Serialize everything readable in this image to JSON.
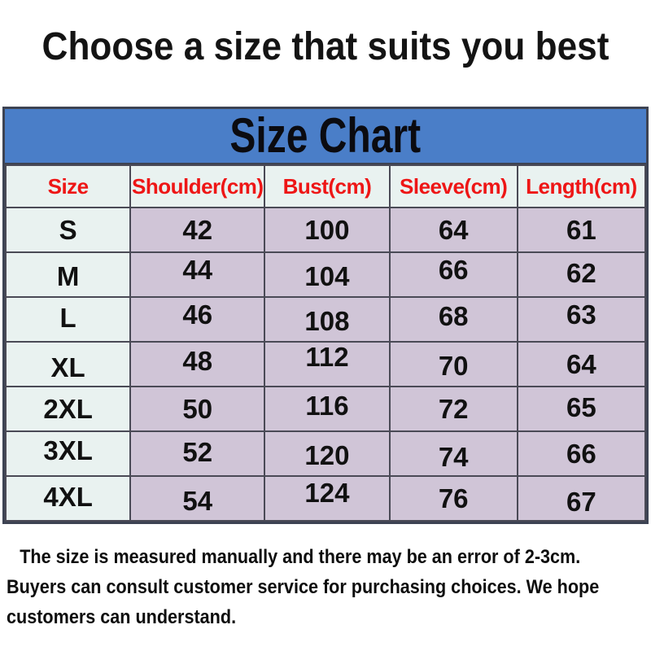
{
  "page": {
    "title": "Choose a size that suits you best"
  },
  "chart_data": {
    "type": "table",
    "title": "Size Chart",
    "columns": [
      "Size",
      "Shoulder(cm)",
      "Bust(cm)",
      "Sleeve(cm)",
      "Length(cm)"
    ],
    "rows": [
      {
        "size": "S",
        "values": [
          42,
          100,
          64,
          61
        ]
      },
      {
        "size": "M",
        "values": [
          44,
          104,
          66,
          62
        ]
      },
      {
        "size": "L",
        "values": [
          46,
          108,
          68,
          63
        ]
      },
      {
        "size": "XL",
        "values": [
          48,
          112,
          70,
          64
        ]
      },
      {
        "size": "2XL",
        "values": [
          50,
          116,
          72,
          65
        ]
      },
      {
        "size": "3XL",
        "values": [
          52,
          120,
          74,
          66
        ]
      },
      {
        "size": "4XL",
        "values": [
          54,
          124,
          76,
          67
        ]
      }
    ]
  },
  "note": {
    "lines": [
      "The size is measured manually and there may be an error of 2-3cm.",
      "Buyers can consult customer service for purchasing choices. We hope",
      "customers can understand."
    ]
  },
  "colors": {
    "panel_header_blue": "#4a7ec8",
    "column_header_red": "#ee1616",
    "light_cell_bg": "#e9f2f0",
    "value_cell_bg": "#d0c5d7",
    "table_border": "#4a4a56",
    "text_black": "#111111"
  }
}
